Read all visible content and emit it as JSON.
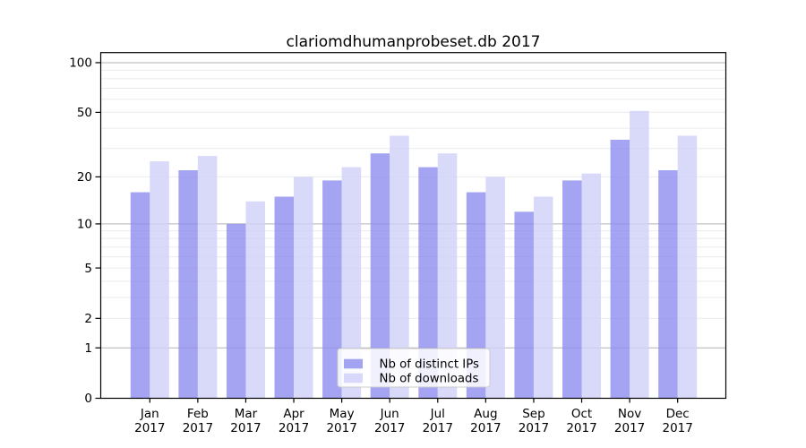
{
  "chart_data": {
    "type": "bar",
    "title": "clariomdhumanprobeset.db 2017",
    "categories": [
      "Jan",
      "Feb",
      "Mar",
      "Apr",
      "May",
      "Jun",
      "Jul",
      "Aug",
      "Sep",
      "Oct",
      "Nov",
      "Dec"
    ],
    "year_label": "2017",
    "series": [
      {
        "name": "Nb of distinct IPs",
        "color": "#8d8def",
        "opacity": 0.8,
        "values": [
          16,
          22,
          10,
          15,
          19,
          28,
          23,
          16,
          12,
          19,
          34,
          22
        ]
      },
      {
        "name": "Nb of downloads",
        "color": "#cfcff9",
        "opacity": 0.8,
        "values": [
          25,
          27,
          14,
          20,
          23,
          36,
          28,
          20,
          15,
          21,
          51,
          36
        ]
      }
    ],
    "xlabel": "",
    "ylabel": "",
    "yscale": "log1p",
    "ylim": [
      0,
      115
    ],
    "yticks": [
      0,
      1,
      2,
      5,
      10,
      20,
      50,
      100
    ],
    "ytick_labels": [
      "0",
      "1",
      "2",
      "5",
      "10",
      "20",
      "50",
      "100"
    ],
    "yticks_minor_grid": [
      2,
      3,
      4,
      5,
      6,
      7,
      8,
      9,
      20,
      30,
      40,
      50,
      60,
      70,
      80,
      90
    ],
    "yticks_major_grid": [
      1,
      10,
      100
    ],
    "grid": true,
    "legend_position": "lower center",
    "colors": {
      "background": "#ffffff",
      "grid_minor": "#ebebeb",
      "grid_major": "#b3b3b3",
      "axis": "#000000",
      "text": "#000000",
      "legend_border": "#cccccc",
      "legend_bg_alpha": 0.85
    }
  }
}
